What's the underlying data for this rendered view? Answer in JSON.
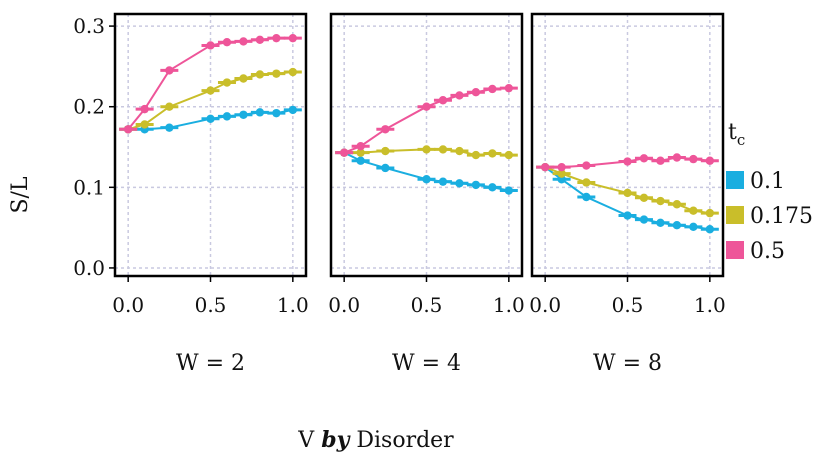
{
  "chart_data": {
    "type": "line",
    "ylabel": "S/L",
    "xlabel": {
      "prefix": "V ",
      "by": "by",
      "suffix": " Disorder"
    },
    "facets": [
      "W = 2",
      "W = 4",
      "W = 8"
    ],
    "x": [
      0.0,
      0.1,
      0.25,
      0.5,
      0.6,
      0.7,
      0.8,
      0.9,
      1.0
    ],
    "xlim": [
      -0.08,
      1.08
    ],
    "ylim": [
      -0.01,
      0.315
    ],
    "xticks": [
      "0.0",
      "0.5",
      "1.0"
    ],
    "xtick_values": [
      0.0,
      0.5,
      1.0
    ],
    "yticks": [
      "0.0",
      "0.1",
      "0.2",
      "0.3"
    ],
    "ytick_values": [
      0.0,
      0.1,
      0.2,
      0.3
    ],
    "grid": true,
    "legend": {
      "title_main": "t",
      "title_sub": "c",
      "position": "right",
      "entries": [
        "0.1",
        "0.175",
        "0.5"
      ]
    },
    "series": [
      {
        "name": "0.1",
        "color": "#1aaee0",
        "panels": [
          [
            0.172,
            0.172,
            0.174,
            0.185,
            0.188,
            0.19,
            0.193,
            0.192,
            0.196
          ],
          [
            0.143,
            0.133,
            0.124,
            0.11,
            0.107,
            0.105,
            0.103,
            0.1,
            0.096
          ],
          [
            0.125,
            0.11,
            0.088,
            0.065,
            0.06,
            0.056,
            0.053,
            0.051,
            0.048
          ]
        ]
      },
      {
        "name": "0.175",
        "color": "#c9be2a",
        "panels": [
          [
            0.172,
            0.178,
            0.2,
            0.22,
            0.23,
            0.235,
            0.24,
            0.241,
            0.243
          ],
          [
            0.143,
            0.143,
            0.145,
            0.147,
            0.147,
            0.145,
            0.14,
            0.142,
            0.14
          ],
          [
            0.125,
            0.117,
            0.106,
            0.093,
            0.087,
            0.083,
            0.079,
            0.071,
            0.068
          ]
        ]
      },
      {
        "name": "0.5",
        "color": "#ee5599",
        "panels": [
          [
            0.172,
            0.197,
            0.245,
            0.276,
            0.28,
            0.281,
            0.283,
            0.285,
            0.285
          ],
          [
            0.143,
            0.151,
            0.172,
            0.2,
            0.208,
            0.214,
            0.218,
            0.222,
            0.223
          ],
          [
            0.125,
            0.125,
            0.127,
            0.132,
            0.136,
            0.133,
            0.137,
            0.135,
            0.133
          ]
        ]
      }
    ]
  }
}
